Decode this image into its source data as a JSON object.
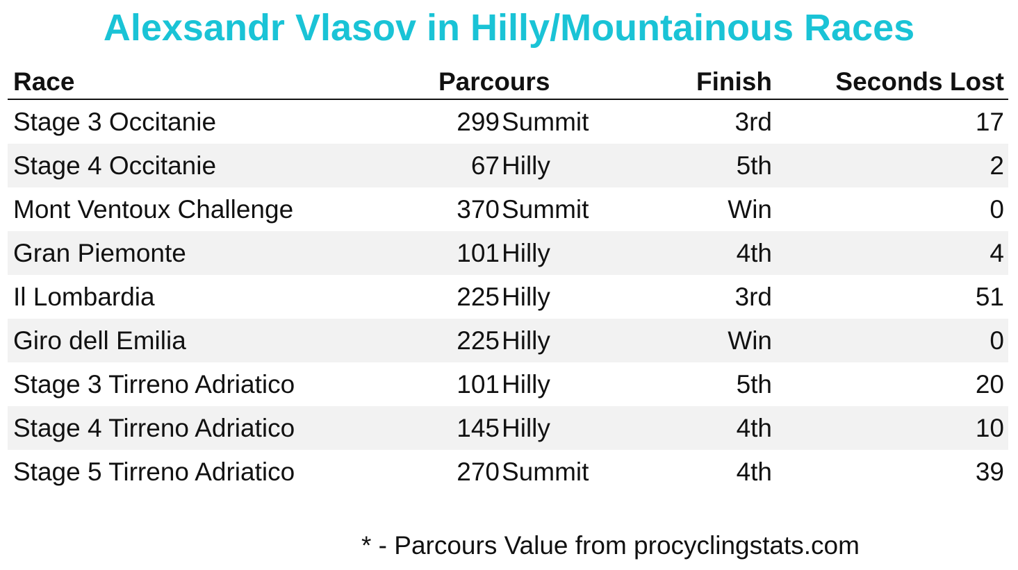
{
  "title": "Alexsandr Vlasov in Hilly/Mountainous Races",
  "chart_data": {
    "type": "table",
    "title": "Alexsandr Vlasov in Hilly/Mountainous Races",
    "columns": [
      "Race",
      "Parcours",
      "Finish",
      "Seconds Lost"
    ],
    "rows": [
      {
        "race": "Stage 3 Occitanie",
        "parcours_value": "299",
        "parcours_type": "Summit",
        "finish": "3rd",
        "seconds_lost": "17"
      },
      {
        "race": "Stage 4 Occitanie",
        "parcours_value": "67",
        "parcours_type": "Hilly",
        "finish": "5th",
        "seconds_lost": "2"
      },
      {
        "race": "Mont Ventoux Challenge",
        "parcours_value": "370",
        "parcours_type": "Summit",
        "finish": "Win",
        "seconds_lost": "0"
      },
      {
        "race": "Gran Piemonte",
        "parcours_value": "101",
        "parcours_type": "Hilly",
        "finish": "4th",
        "seconds_lost": "4"
      },
      {
        "race": "Il Lombardia",
        "parcours_value": "225",
        "parcours_type": "Hilly",
        "finish": "3rd",
        "seconds_lost": "51"
      },
      {
        "race": "Giro dell Emilia",
        "parcours_value": "225",
        "parcours_type": "Hilly",
        "finish": "Win",
        "seconds_lost": "0"
      },
      {
        "race": "Stage 3 Tirreno Adriatico",
        "parcours_value": "101",
        "parcours_type": "Hilly",
        "finish": "5th",
        "seconds_lost": "20"
      },
      {
        "race": "Stage 4 Tirreno Adriatico",
        "parcours_value": "145",
        "parcours_type": "Hilly",
        "finish": "4th",
        "seconds_lost": "10"
      },
      {
        "race": "Stage 5 Tirreno Adriatico",
        "parcours_value": "270",
        "parcours_type": "Summit",
        "finish": "4th",
        "seconds_lost": "39"
      }
    ],
    "footnote": "* - Parcours Value from procyclingstats.com"
  },
  "colors": {
    "title": "#1ac3d6",
    "row_shade": "#f2f2f2",
    "text": "#111111"
  }
}
